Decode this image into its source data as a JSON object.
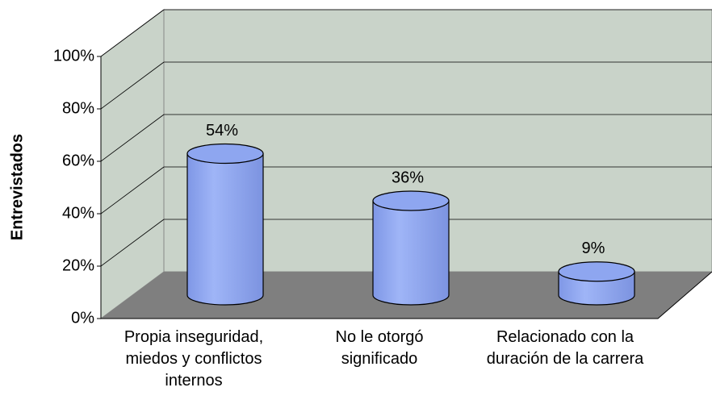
{
  "chart_data": {
    "type": "bar3d",
    "categories": [
      "Propia inseguridad, miedos y conflictos internos",
      "No le otorgó significado",
      "Relacionado con la duración de la carrera"
    ],
    "values": [
      54,
      36,
      9
    ],
    "value_labels": [
      "54%",
      "36%",
      "9%"
    ],
    "color": "#8ea6f0",
    "ylabel": "Entrevistados",
    "ylim": [
      0,
      100
    ],
    "yticks": [
      {
        "value": 0,
        "label": "0%"
      },
      {
        "value": 20,
        "label": "20%"
      },
      {
        "value": 40,
        "label": "40%"
      },
      {
        "value": 60,
        "label": "60%"
      },
      {
        "value": 80,
        "label": "80%"
      },
      {
        "value": 100,
        "label": "100%"
      }
    ],
    "grid": true
  }
}
